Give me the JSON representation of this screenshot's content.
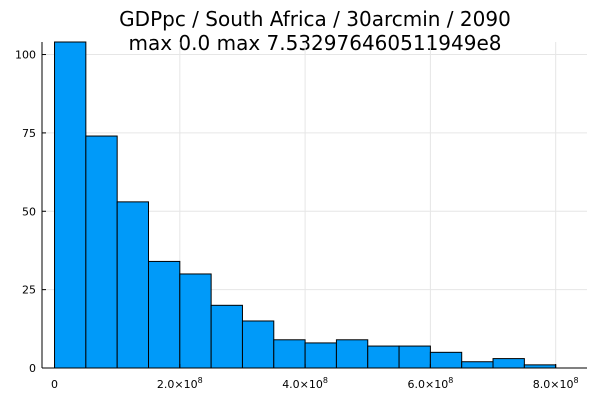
{
  "chart_data": {
    "type": "bar",
    "title_lines": [
      "GDPpc / South Africa / 30arcmin / 2090",
      "max 0.0  max 7.532976460511949e8"
    ],
    "xlabel": "",
    "ylabel": "",
    "bin_edges": [
      0,
      50000000,
      100000000,
      150000000,
      200000000,
      250000000,
      300000000,
      350000000,
      400000000,
      450000000,
      500000000,
      550000000,
      600000000,
      650000000,
      700000000,
      750000000,
      800000000
    ],
    "values": [
      104,
      74,
      53,
      34,
      30,
      20,
      15,
      9,
      8,
      9,
      7,
      7,
      5,
      2,
      3,
      1
    ],
    "xlim": [
      -20000000,
      850000000
    ],
    "ylim": [
      0,
      104
    ],
    "x_ticks": [
      {
        "value": 0,
        "mantissa": "0",
        "exponent": ""
      },
      {
        "value": 200000000,
        "mantissa": "2.0×10",
        "exponent": "8"
      },
      {
        "value": 400000000,
        "mantissa": "4.0×10",
        "exponent": "8"
      },
      {
        "value": 600000000,
        "mantissa": "6.0×10",
        "exponent": "8"
      },
      {
        "value": 800000000,
        "mantissa": "8.0×10",
        "exponent": "8"
      }
    ],
    "y_ticks": [
      {
        "value": 0,
        "label": "0"
      },
      {
        "value": 25,
        "label": "25"
      },
      {
        "value": 50,
        "label": "50"
      },
      {
        "value": 75,
        "label": "75"
      },
      {
        "value": 100,
        "label": "100"
      }
    ],
    "bar_color": "#009af9",
    "grid": true,
    "legend": "none"
  }
}
